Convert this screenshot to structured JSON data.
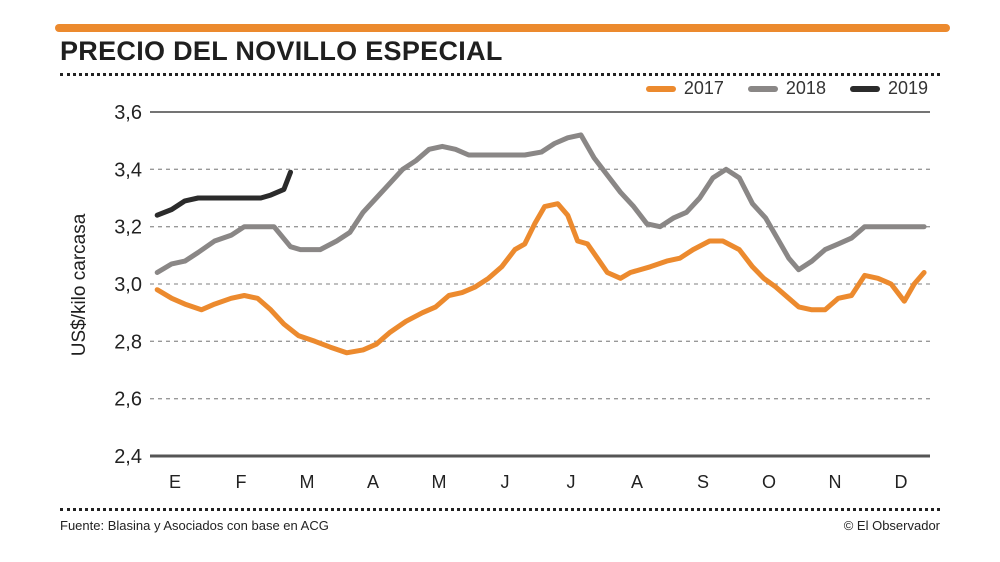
{
  "colors": {
    "accent_bar": "#ec8a2e"
  },
  "chart_data": {
    "type": "line",
    "title": "PRECIO DEL NOVILLO ESPECIAL",
    "xlabel": "",
    "ylabel": "US$/kilo carcasa",
    "ylim": [
      2.4,
      3.6
    ],
    "yticks": [
      2.4,
      2.6,
      2.8,
      3.0,
      3.2,
      3.4,
      3.6
    ],
    "ytick_labels": [
      "2,4",
      "2,6",
      "2,8",
      "3,0",
      "3,2",
      "3,4",
      "3,6"
    ],
    "x_range": [
      0,
      11.5
    ],
    "categories": [
      "E",
      "F",
      "M",
      "A",
      "M",
      "J",
      "J",
      "A",
      "S",
      "O",
      "N",
      "D"
    ],
    "legend_position": "top-right",
    "series": [
      {
        "name": "2017",
        "color": "#ec8a2e",
        "x": [
          -0.27,
          -0.05,
          0.15,
          0.4,
          0.6,
          0.85,
          1.05,
          1.25,
          1.45,
          1.65,
          1.87,
          2.12,
          2.35,
          2.6,
          2.85,
          3.05,
          3.25,
          3.5,
          3.75,
          3.95,
          4.15,
          4.35,
          4.55,
          4.75,
          4.95,
          5.15,
          5.3,
          5.45,
          5.6,
          5.8,
          5.95,
          6.1,
          6.25,
          6.4,
          6.55,
          6.75,
          6.9,
          7.2,
          7.45,
          7.65,
          7.85,
          8.1,
          8.3,
          8.55,
          8.75,
          8.92,
          9.1,
          9.3,
          9.45,
          9.65,
          9.85,
          10.05,
          10.25,
          10.45,
          10.65,
          10.85,
          11.05,
          11.2,
          11.35
        ],
        "values": [
          2.98,
          2.95,
          2.93,
          2.91,
          2.93,
          2.95,
          2.96,
          2.95,
          2.91,
          2.86,
          2.82,
          2.8,
          2.78,
          2.76,
          2.77,
          2.79,
          2.83,
          2.87,
          2.9,
          2.92,
          2.96,
          2.97,
          2.99,
          3.02,
          3.06,
          3.12,
          3.14,
          3.21,
          3.27,
          3.28,
          3.24,
          3.15,
          3.14,
          3.09,
          3.04,
          3.02,
          3.04,
          3.06,
          3.08,
          3.09,
          3.12,
          3.15,
          3.15,
          3.12,
          3.06,
          3.02,
          2.99,
          2.95,
          2.92,
          2.91,
          2.91,
          2.95,
          2.96,
          3.03,
          3.02,
          3.0,
          2.94,
          3.0,
          3.04
        ]
      },
      {
        "name": "2018",
        "color": "#8a8786",
        "x": [
          -0.27,
          -0.05,
          0.15,
          0.35,
          0.6,
          0.85,
          1.05,
          1.3,
          1.5,
          1.75,
          1.9,
          2.05,
          2.2,
          2.45,
          2.65,
          2.85,
          3.05,
          3.25,
          3.45,
          3.65,
          3.85,
          4.05,
          4.25,
          4.45,
          4.65,
          4.85,
          5.05,
          5.3,
          5.55,
          5.75,
          5.95,
          6.15,
          6.35,
          6.55,
          6.75,
          6.95,
          7.15,
          7.35,
          7.55,
          7.75,
          7.95,
          8.15,
          8.35,
          8.55,
          8.75,
          8.95,
          9.15,
          9.3,
          9.45,
          9.65,
          9.85,
          10.05,
          10.25,
          10.45,
          10.65,
          10.85,
          11.05,
          11.2,
          11.35
        ],
        "values": [
          3.04,
          3.07,
          3.08,
          3.11,
          3.15,
          3.17,
          3.2,
          3.2,
          3.2,
          3.13,
          3.12,
          3.12,
          3.12,
          3.15,
          3.18,
          3.25,
          3.3,
          3.35,
          3.4,
          3.43,
          3.47,
          3.48,
          3.47,
          3.45,
          3.45,
          3.45,
          3.45,
          3.45,
          3.46,
          3.49,
          3.51,
          3.52,
          3.44,
          3.38,
          3.32,
          3.27,
          3.21,
          3.2,
          3.23,
          3.25,
          3.3,
          3.37,
          3.4,
          3.37,
          3.28,
          3.23,
          3.15,
          3.09,
          3.05,
          3.08,
          3.12,
          3.14,
          3.16,
          3.2,
          3.2,
          3.2,
          3.2,
          3.2,
          3.2
        ]
      },
      {
        "name": "2019",
        "color": "#2b2b2b",
        "x": [
          -0.27,
          -0.05,
          0.15,
          0.35,
          0.6,
          0.85,
          1.05,
          1.3,
          1.45,
          1.65,
          1.75
        ],
        "values": [
          3.24,
          3.26,
          3.29,
          3.3,
          3.3,
          3.3,
          3.3,
          3.3,
          3.31,
          3.33,
          3.39
        ]
      }
    ]
  },
  "footer": {
    "source": "Fuente: Blasina y Asociados con base en ACG",
    "credit": "© El Observador"
  }
}
